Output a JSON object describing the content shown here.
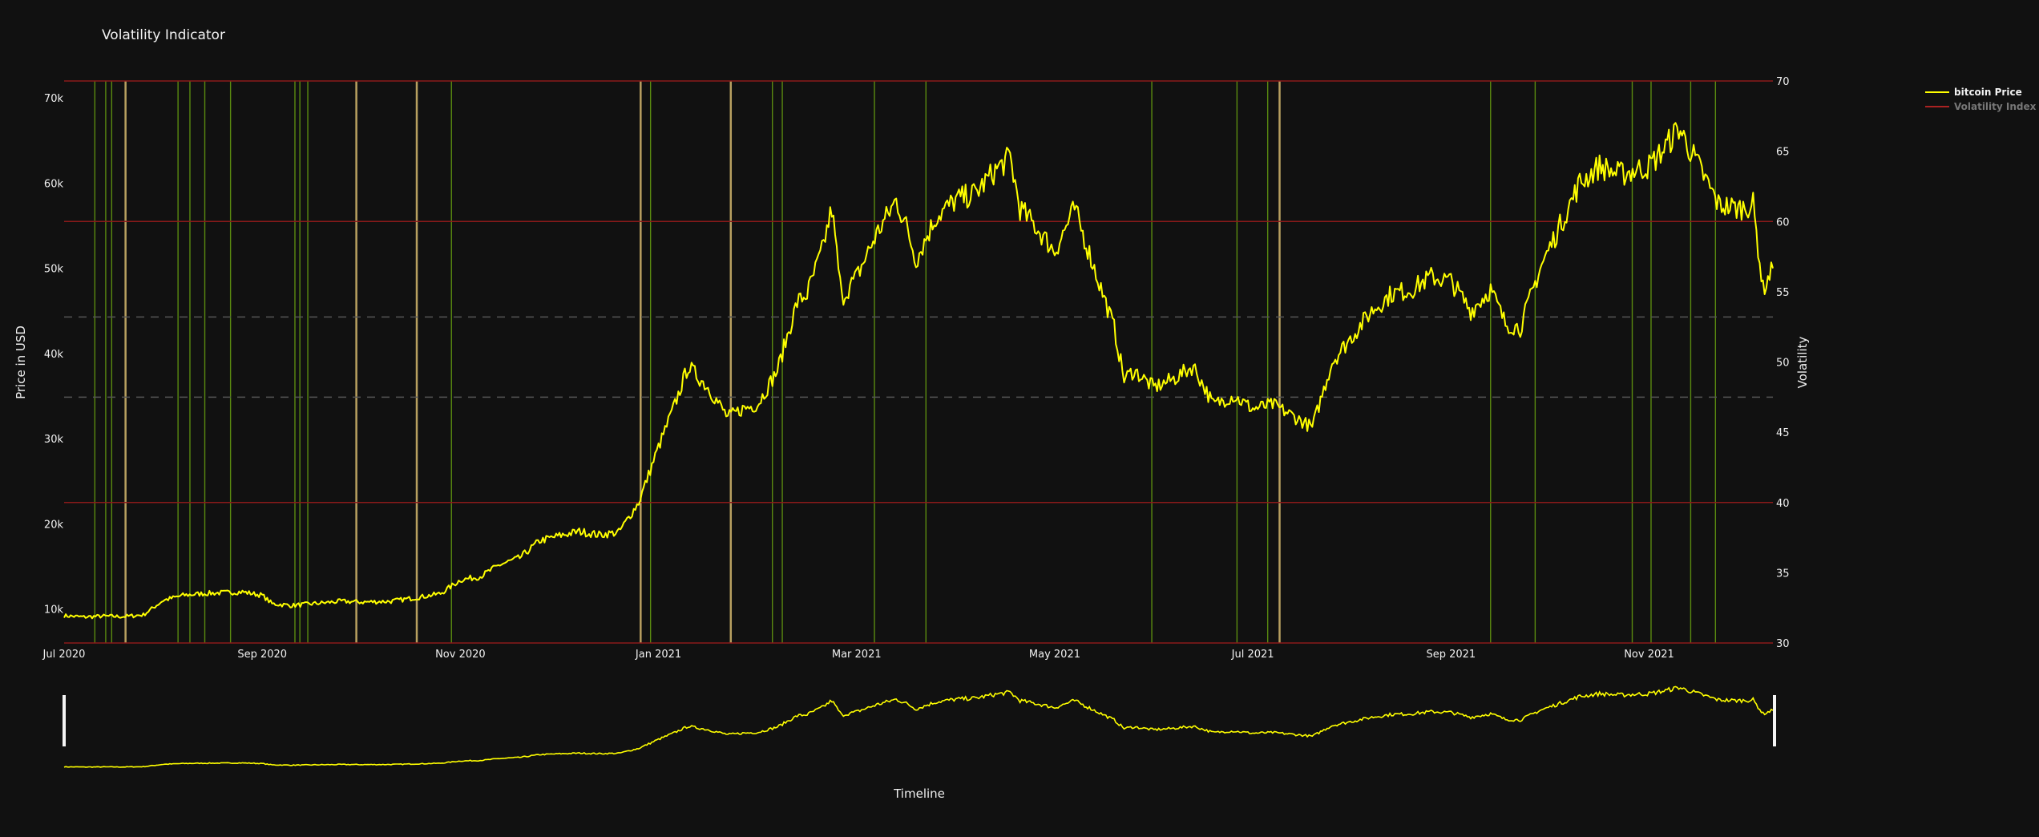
{
  "chart_data": {
    "type": "line",
    "title": "Volatility Indicator",
    "xlabel": "Timeline",
    "ylabel": "Price in USD",
    "y2label": "Volatility",
    "x_ticks": [
      "Jul 2020",
      "Sep 2020",
      "Nov 2020",
      "Jan 2021",
      "Mar 2021",
      "May 2021",
      "Jul 2021",
      "Sep 2021",
      "Nov 2021"
    ],
    "x_tick_months": [
      0,
      2,
      4,
      6,
      8,
      10,
      12,
      14,
      16
    ],
    "x_range_months": [
      0,
      17.25
    ],
    "y_ticks": [
      10000,
      20000,
      30000,
      40000,
      50000,
      60000,
      70000
    ],
    "y_tick_labels": [
      "10k",
      "20k",
      "30k",
      "40k",
      "50k",
      "60k",
      "70k"
    ],
    "ylim": [
      6000,
      72000
    ],
    "y2_ticks": [
      30,
      35,
      40,
      45,
      50,
      55,
      60,
      65,
      70
    ],
    "y2_tick_labels": [
      "30",
      "35",
      "40",
      "45",
      "50",
      "55",
      "60",
      "65",
      "70"
    ],
    "y2lim": [
      30,
      70
    ],
    "y2_solid_lines": [
      30,
      40,
      60,
      70
    ],
    "y2_dashed_lines": [
      47.5,
      53.2
    ],
    "legend_position": "top-right",
    "grid": false,
    "range_slider": true,
    "colors": {
      "background": "#111111",
      "price": "#ffff00",
      "volatility": "#aa2222",
      "solid_level": "#8b1a1a",
      "dashed_level": "#555555",
      "green_band": "#5a8a10",
      "tan_band": "#b8a060"
    },
    "series": [
      {
        "name": "bitcoin Price",
        "points": [
          [
            0,
            9200
          ],
          [
            0.2,
            9050
          ],
          [
            0.4,
            9150
          ],
          [
            0.6,
            9100
          ],
          [
            0.8,
            9300
          ],
          [
            1.0,
            11000
          ],
          [
            1.2,
            11600
          ],
          [
            1.4,
            11800
          ],
          [
            1.6,
            11900
          ],
          [
            1.8,
            12000
          ],
          [
            2.0,
            11600
          ],
          [
            2.1,
            10600
          ],
          [
            2.3,
            10400
          ],
          [
            2.5,
            10600
          ],
          [
            2.8,
            10900
          ],
          [
            3.0,
            10800
          ],
          [
            3.3,
            10900
          ],
          [
            3.6,
            11400
          ],
          [
            3.8,
            11800
          ],
          [
            4.0,
            13400
          ],
          [
            4.2,
            13800
          ],
          [
            4.4,
            15200
          ],
          [
            4.6,
            16000
          ],
          [
            4.8,
            18000
          ],
          [
            5.0,
            18600
          ],
          [
            5.2,
            19100
          ],
          [
            5.4,
            18700
          ],
          [
            5.6,
            19000
          ],
          [
            5.8,
            22500
          ],
          [
            6.0,
            29000
          ],
          [
            6.15,
            33500
          ],
          [
            6.3,
            38500
          ],
          [
            6.5,
            36000
          ],
          [
            6.7,
            32500
          ],
          [
            6.85,
            33500
          ],
          [
            7.0,
            34000
          ],
          [
            7.2,
            38000
          ],
          [
            7.4,
            46000
          ],
          [
            7.5,
            47000
          ],
          [
            7.65,
            52000
          ],
          [
            7.75,
            57000
          ],
          [
            7.85,
            46500
          ],
          [
            8.0,
            49000
          ],
          [
            8.2,
            54000
          ],
          [
            8.4,
            58000
          ],
          [
            8.5,
            55000
          ],
          [
            8.6,
            51000
          ],
          [
            8.8,
            56000
          ],
          [
            9.0,
            58000
          ],
          [
            9.2,
            58800
          ],
          [
            9.4,
            61500
          ],
          [
            9.55,
            63000
          ],
          [
            9.65,
            57000
          ],
          [
            9.8,
            55000
          ],
          [
            10.0,
            52000
          ],
          [
            10.2,
            57000
          ],
          [
            10.4,
            50000
          ],
          [
            10.6,
            43000
          ],
          [
            10.7,
            37000
          ],
          [
            10.8,
            38000
          ],
          [
            11.0,
            36000
          ],
          [
            11.2,
            37000
          ],
          [
            11.4,
            38500
          ],
          [
            11.6,
            34000
          ],
          [
            11.8,
            35000
          ],
          [
            12.0,
            33500
          ],
          [
            12.2,
            34000
          ],
          [
            12.4,
            32700
          ],
          [
            12.6,
            31300
          ],
          [
            12.8,
            39000
          ],
          [
            13.0,
            42000
          ],
          [
            13.2,
            45000
          ],
          [
            13.4,
            47000
          ],
          [
            13.6,
            47500
          ],
          [
            13.8,
            49000
          ],
          [
            14.0,
            48500
          ],
          [
            14.2,
            45000
          ],
          [
            14.4,
            47500
          ],
          [
            14.55,
            43500
          ],
          [
            14.7,
            43000
          ],
          [
            14.9,
            50000
          ],
          [
            15.1,
            55000
          ],
          [
            15.3,
            60000
          ],
          [
            15.5,
            62000
          ],
          [
            15.7,
            61000
          ],
          [
            16.0,
            62000
          ],
          [
            16.15,
            64000
          ],
          [
            16.3,
            66500
          ],
          [
            16.5,
            62000
          ],
          [
            16.7,
            57500
          ],
          [
            16.9,
            57000
          ],
          [
            17.05,
            57500
          ],
          [
            17.15,
            47500
          ],
          [
            17.25,
            50000
          ]
        ]
      },
      {
        "name": "Volatility Index",
        "legend_only": true
      }
    ],
    "signal_bands": [
      {
        "t": 0.31,
        "kind": "green"
      },
      {
        "t": 0.42,
        "kind": "green"
      },
      {
        "t": 0.48,
        "kind": "green"
      },
      {
        "t": 0.62,
        "kind": "tan"
      },
      {
        "t": 1.15,
        "kind": "green"
      },
      {
        "t": 1.27,
        "kind": "green"
      },
      {
        "t": 1.42,
        "kind": "green"
      },
      {
        "t": 1.68,
        "kind": "green"
      },
      {
        "t": 2.33,
        "kind": "green"
      },
      {
        "t": 2.38,
        "kind": "green"
      },
      {
        "t": 2.46,
        "kind": "green"
      },
      {
        "t": 2.95,
        "kind": "tan"
      },
      {
        "t": 3.56,
        "kind": "tan"
      },
      {
        "t": 3.91,
        "kind": "green"
      },
      {
        "t": 5.82,
        "kind": "tan"
      },
      {
        "t": 5.92,
        "kind": "green"
      },
      {
        "t": 6.73,
        "kind": "tan"
      },
      {
        "t": 7.15,
        "kind": "green"
      },
      {
        "t": 7.25,
        "kind": "green"
      },
      {
        "t": 8.18,
        "kind": "green"
      },
      {
        "t": 8.7,
        "kind": "green"
      },
      {
        "t": 10.98,
        "kind": "green"
      },
      {
        "t": 11.84,
        "kind": "green"
      },
      {
        "t": 12.15,
        "kind": "green"
      },
      {
        "t": 12.27,
        "kind": "tan"
      },
      {
        "t": 14.4,
        "kind": "green"
      },
      {
        "t": 14.85,
        "kind": "green"
      },
      {
        "t": 15.83,
        "kind": "green"
      },
      {
        "t": 16.02,
        "kind": "green"
      },
      {
        "t": 16.42,
        "kind": "green"
      },
      {
        "t": 16.67,
        "kind": "green"
      }
    ]
  }
}
